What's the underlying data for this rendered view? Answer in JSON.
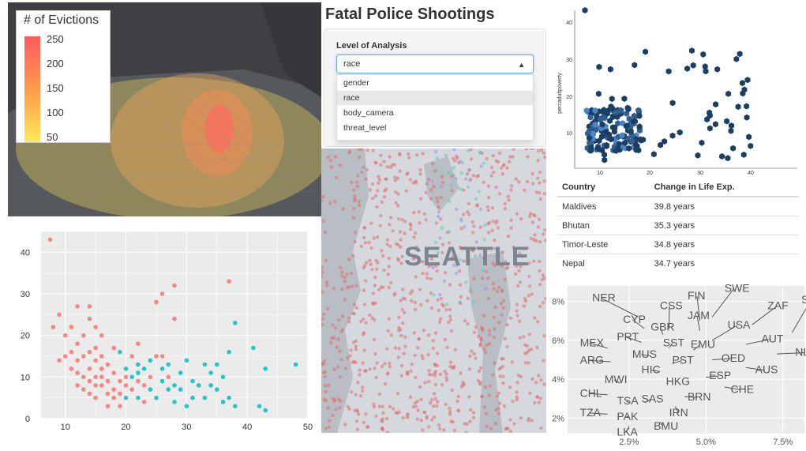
{
  "evictions_map": {
    "legend_title": "# of Evictions",
    "legend_ticks": [
      "250",
      "200",
      "150",
      "100",
      "50"
    ],
    "colors": {
      "high": "#ff5a5f",
      "mid": "#ff9a4c",
      "low": "#ffe95a"
    }
  },
  "dropdown": {
    "title": "Fatal Police Shootings",
    "label": "Level of Analysis",
    "selected": "race",
    "options": [
      "gender",
      "race",
      "body_camera",
      "threat_level"
    ]
  },
  "seattle_map": {
    "city_label": "SEATTLE",
    "dot_colors": [
      "#e06a6a",
      "#5cc8b8",
      "#9a8fe0"
    ]
  },
  "hexbin": {
    "ylabel": "percadultpoverty",
    "xticks": [
      "10",
      "20",
      "30",
      "40"
    ],
    "yticks": [
      "10",
      "20",
      "30",
      "40"
    ],
    "color": "#1b3e63"
  },
  "table": {
    "headers": [
      "Country",
      "Change in Life Exp."
    ],
    "rows": [
      [
        "Maldives",
        "39.8 years"
      ],
      [
        "Bhutan",
        "35.3 years"
      ],
      [
        "Timor-Leste",
        "34.8 years"
      ],
      [
        "Nepal",
        "34.7 years"
      ]
    ]
  },
  "chart_data": [
    {
      "type": "scatter",
      "title": "",
      "xlabel": "",
      "ylabel": "",
      "xlim": [
        6,
        50
      ],
      "ylim": [
        0,
        45
      ],
      "x_ticks": [
        10,
        20,
        30,
        40,
        50
      ],
      "y_ticks": [
        0,
        10,
        20,
        30,
        40
      ],
      "grid": true,
      "series": [
        {
          "color": "#f8766d",
          "points": [
            [
              7.5,
              43
            ],
            [
              8,
              22
            ],
            [
              9,
              25
            ],
            [
              10,
              20
            ],
            [
              11,
              22
            ],
            [
              12,
              27
            ],
            [
              12,
              18
            ],
            [
              13,
              15
            ],
            [
              14,
              12
            ],
            [
              14,
              24
            ],
            [
              15,
              10
            ],
            [
              15,
              14
            ],
            [
              16,
              8
            ],
            [
              16,
              12
            ],
            [
              17,
              9
            ],
            [
              13,
              10
            ],
            [
              12,
              8
            ],
            [
              14,
              6
            ],
            [
              15,
              5
            ],
            [
              11,
              12
            ],
            [
              10,
              15
            ],
            [
              9,
              14
            ],
            [
              16,
              15
            ],
            [
              17,
              13
            ],
            [
              18,
              11
            ],
            [
              18,
              7
            ],
            [
              19,
              9
            ],
            [
              20,
              10
            ],
            [
              13,
              20
            ],
            [
              15,
              17
            ],
            [
              14,
              16
            ],
            [
              12,
              14
            ],
            [
              11,
              16
            ],
            [
              16,
              10
            ],
            [
              17,
              6
            ],
            [
              18,
              5
            ],
            [
              15,
              8
            ],
            [
              14,
              9
            ],
            [
              13,
              7
            ],
            [
              12,
              11
            ],
            [
              19,
              6
            ],
            [
              20,
              8
            ],
            [
              21,
              7
            ],
            [
              22,
              9
            ],
            [
              23,
              8
            ],
            [
              24,
              10
            ],
            [
              25,
              15
            ],
            [
              25,
              28
            ],
            [
              26,
              30
            ],
            [
              28,
              24
            ],
            [
              28,
              32
            ],
            [
              37,
              33
            ],
            [
              18,
              17
            ],
            [
              16,
              20
            ],
            [
              15,
              22
            ],
            [
              14,
              27
            ],
            [
              22,
              18
            ],
            [
              21,
              15
            ],
            [
              26,
              15
            ],
            [
              27,
              10
            ],
            [
              23,
              4
            ],
            [
              17,
              3
            ],
            [
              19,
              3
            ]
          ]
        },
        {
          "color": "#00bfc4",
          "points": [
            [
              19,
              16
            ],
            [
              20,
              12
            ],
            [
              22,
              11
            ],
            [
              24,
              14
            ],
            [
              26,
              12
            ],
            [
              27,
              13
            ],
            [
              29,
              11
            ],
            [
              30,
              14
            ],
            [
              31,
              9
            ],
            [
              33,
              13
            ],
            [
              34,
              11
            ],
            [
              35,
              13
            ],
            [
              36,
              10
            ],
            [
              38,
              23
            ],
            [
              37,
              16
            ],
            [
              41,
              17
            ],
            [
              43,
              12
            ],
            [
              48,
              13
            ],
            [
              25,
              5
            ],
            [
              27,
              7
            ],
            [
              28,
              4
            ],
            [
              30,
              3
            ],
            [
              32,
              8
            ],
            [
              33,
              5
            ],
            [
              36,
              4
            ],
            [
              38,
              3
            ],
            [
              42,
              3
            ],
            [
              43,
              2
            ],
            [
              22,
              5
            ],
            [
              24,
              7
            ],
            [
              26,
              9
            ],
            [
              28,
              8
            ],
            [
              35,
              7
            ],
            [
              37,
              5
            ],
            [
              21,
              10
            ],
            [
              23,
              12
            ],
            [
              29,
              7
            ],
            [
              31,
              5
            ],
            [
              34,
              8
            ],
            [
              20,
              5
            ],
            [
              22,
              13
            ]
          ]
        }
      ]
    },
    {
      "type": "scatter",
      "title": "",
      "xlabel": "",
      "ylabel": "",
      "xlim": [
        0.5,
        8.2
      ],
      "ylim": [
        1.2,
        8.8
      ],
      "x_tick_labels": [
        "2.5%",
        "5.0%",
        "7.5%"
      ],
      "x_ticks": [
        2.5,
        5.0,
        7.5
      ],
      "y_tick_labels": [
        "2%",
        "4%",
        "6%",
        "8%"
      ],
      "y_ticks": [
        2,
        4,
        6,
        8
      ],
      "grid": true,
      "labels": [
        {
          "text": "NER",
          "x": 2.8,
          "y": 7.2,
          "lx": 1.3,
          "ly": 8.0
        },
        {
          "text": "FIN",
          "x": 4.8,
          "y": 7.0,
          "lx": 4.4,
          "ly": 8.1
        },
        {
          "text": "SWE",
          "x": 5.2,
          "y": 7.2,
          "lx": 5.6,
          "ly": 8.5
        },
        {
          "text": "CSS",
          "x": 3.8,
          "y": 6.6,
          "lx": 3.5,
          "ly": 7.6
        },
        {
          "text": "SWZ",
          "x": 7.8,
          "y": 6.4,
          "lx": 8.1,
          "ly": 7.9
        },
        {
          "text": "ZAF",
          "x": 6.5,
          "y": 6.8,
          "lx": 7.0,
          "ly": 7.6
        },
        {
          "text": "CYP",
          "x": 3.0,
          "y": 6.6,
          "lx": 2.3,
          "ly": 6.9
        },
        {
          "text": "JAM",
          "x": 4.8,
          "y": 6.5,
          "lx": 4.4,
          "ly": 7.1
        },
        {
          "text": "GBR",
          "x": 3.6,
          "y": 6.3,
          "lx": 3.2,
          "ly": 6.5
        },
        {
          "text": "USA",
          "x": 5.2,
          "y": 6.0,
          "lx": 5.7,
          "ly": 6.6
        },
        {
          "text": "PRT",
          "x": 2.9,
          "y": 5.9,
          "lx": 2.1,
          "ly": 6.0
        },
        {
          "text": "AUT",
          "x": 6.3,
          "y": 5.8,
          "lx": 6.8,
          "ly": 5.9
        },
        {
          "text": "MEX",
          "x": 1.8,
          "y": 5.6,
          "lx": 0.9,
          "ly": 5.7
        },
        {
          "text": "SST",
          "x": 3.8,
          "y": 5.6,
          "lx": 3.6,
          "ly": 5.7
        },
        {
          "text": "EMU",
          "x": 4.6,
          "y": 5.5,
          "lx": 4.5,
          "ly": 5.6
        },
        {
          "text": "NLD",
          "x": 7.3,
          "y": 5.3,
          "lx": 7.9,
          "ly": 5.2
        },
        {
          "text": "MUS",
          "x": 3.2,
          "y": 5.2,
          "lx": 2.6,
          "ly": 5.1
        },
        {
          "text": "OED",
          "x": 5.2,
          "y": 5.0,
          "lx": 5.5,
          "ly": 4.9
        },
        {
          "text": "ARG",
          "x": 1.9,
          "y": 4.9,
          "lx": 0.9,
          "ly": 4.8
        },
        {
          "text": "PST",
          "x": 3.9,
          "y": 4.8,
          "lx": 3.9,
          "ly": 4.8
        },
        {
          "text": "HIC",
          "x": 3.5,
          "y": 4.4,
          "lx": 2.9,
          "ly": 4.3
        },
        {
          "text": "AUS",
          "x": 6.3,
          "y": 4.6,
          "lx": 6.6,
          "ly": 4.3
        },
        {
          "text": "MWI",
          "x": 2.2,
          "y": 3.8,
          "lx": 1.7,
          "ly": 3.8
        },
        {
          "text": "ESP",
          "x": 5.0,
          "y": 4.1,
          "lx": 5.1,
          "ly": 4.0
        },
        {
          "text": "HKG",
          "x": 4.0,
          "y": 3.7,
          "lx": 3.7,
          "ly": 3.7
        },
        {
          "text": "CHE",
          "x": 5.6,
          "y": 3.6,
          "lx": 5.8,
          "ly": 3.3
        },
        {
          "text": "CHL",
          "x": 1.8,
          "y": 3.2,
          "lx": 0.9,
          "ly": 3.1
        },
        {
          "text": "TSA",
          "x": 2.5,
          "y": 2.8,
          "lx": 2.1,
          "ly": 2.7
        },
        {
          "text": "SAS",
          "x": 3.0,
          "y": 2.8,
          "lx": 2.9,
          "ly": 2.8
        },
        {
          "text": "BRN",
          "x": 4.3,
          "y": 3.1,
          "lx": 4.4,
          "ly": 2.9
        },
        {
          "text": "TZA",
          "x": 1.8,
          "y": 2.2,
          "lx": 0.9,
          "ly": 2.1
        },
        {
          "text": "IRN",
          "x": 4.0,
          "y": 2.6,
          "lx": 3.8,
          "ly": 2.1
        },
        {
          "text": "PAK",
          "x": 2.5,
          "y": 2.1,
          "lx": 2.1,
          "ly": 1.9
        },
        {
          "text": "BMU",
          "x": 3.5,
          "y": 1.8,
          "lx": 3.3,
          "ly": 1.4
        },
        {
          "text": "LKA",
          "x": 2.5,
          "y": 1.6,
          "lx": 2.1,
          "ly": 1.1
        }
      ]
    }
  ]
}
